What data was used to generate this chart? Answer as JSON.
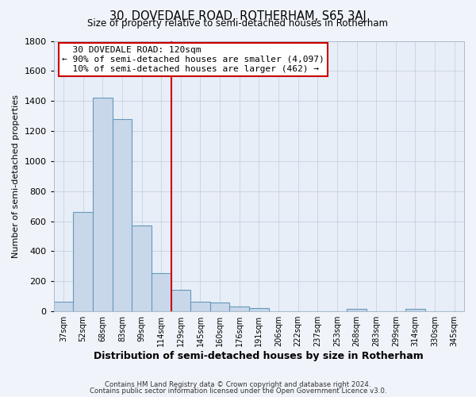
{
  "title": "30, DOVEDALE ROAD, ROTHERHAM, S65 3AJ",
  "subtitle": "Size of property relative to semi-detached houses in Rotherham",
  "xlabel": "Distribution of semi-detached houses by size in Rotherham",
  "ylabel": "Number of semi-detached properties",
  "categories": [
    "37sqm",
    "52sqm",
    "68sqm",
    "83sqm",
    "99sqm",
    "114sqm",
    "129sqm",
    "145sqm",
    "160sqm",
    "176sqm",
    "191sqm",
    "206sqm",
    "222sqm",
    "237sqm",
    "253sqm",
    "268sqm",
    "283sqm",
    "299sqm",
    "314sqm",
    "330sqm",
    "345sqm"
  ],
  "bar_heights": [
    65,
    660,
    1420,
    1280,
    570,
    255,
    145,
    65,
    60,
    30,
    20,
    0,
    0,
    0,
    0,
    15,
    0,
    0,
    15,
    0,
    0
  ],
  "bar_color": "#c8d8ea",
  "bar_edge_color": "#6699bb",
  "vline_x": 6.0,
  "vline_color": "#cc0000",
  "ylim": [
    0,
    1800
  ],
  "yticks": [
    0,
    200,
    400,
    600,
    800,
    1000,
    1200,
    1400,
    1600,
    1800
  ],
  "annotation_title": "30 DOVEDALE ROAD: 120sqm",
  "annotation_line1": "← 90% of semi-detached houses are smaller (4,097)",
  "annotation_line2": "10% of semi-detached houses are larger (462) →",
  "annotation_box_color": "#ffffff",
  "annotation_box_edge": "#cc0000",
  "footer1": "Contains HM Land Registry data © Crown copyright and database right 2024.",
  "footer2": "Contains public sector information licensed under the Open Government Licence v3.0.",
  "fig_bg_color": "#f0f4fa",
  "plot_bg_color": "#e8eef8",
  "grid_color": "#c0ccd8"
}
